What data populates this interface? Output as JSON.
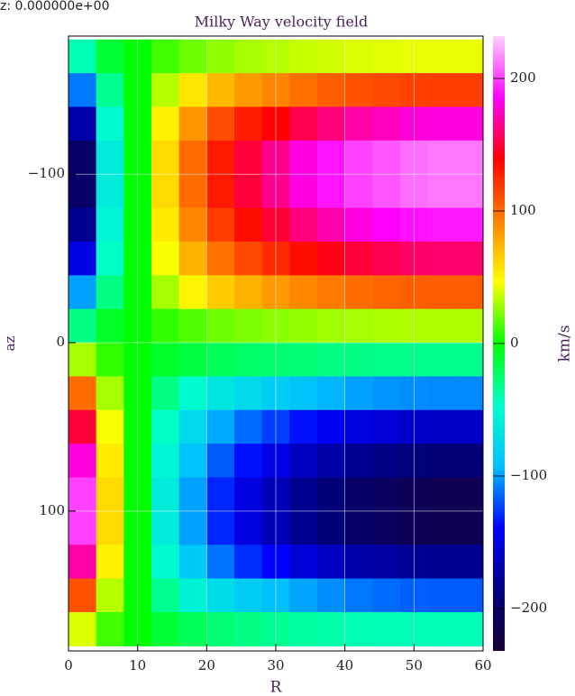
{
  "chart_data": {
    "type": "heatmap",
    "header": "z:  0.000000e+00",
    "title": "Milky Way velocity field",
    "xlabel": "R",
    "ylabel": "az",
    "colorbar_label": "km/s",
    "x": [
      2,
      6,
      10,
      14,
      18,
      22,
      26,
      30,
      34,
      38,
      42,
      46,
      50,
      54,
      58
    ],
    "y": [
      -170,
      -150,
      -130,
      -110,
      -90,
      -70,
      -50,
      -30,
      -10,
      10,
      30,
      50,
      70,
      90,
      110,
      130,
      150,
      170
    ],
    "z": [
      [
        -40,
        -12,
        0,
        12,
        20,
        26,
        30,
        33,
        36,
        38,
        40,
        41,
        42,
        42,
        42
      ],
      [
        -110,
        -33,
        0,
        33,
        55,
        72,
        83,
        91,
        99,
        105,
        110,
        113,
        116,
        117,
        117
      ],
      [
        -170,
        -51,
        0,
        51,
        85,
        111,
        128,
        140,
        153,
        162,
        170,
        174,
        179,
        180,
        180
      ],
      [
        -200,
        -60,
        0,
        60,
        100,
        130,
        150,
        165,
        180,
        190,
        200,
        205,
        210,
        212,
        212
      ],
      [
        -200,
        -60,
        0,
        60,
        100,
        130,
        150,
        165,
        180,
        190,
        200,
        205,
        210,
        212,
        212
      ],
      [
        -180,
        -54,
        0,
        54,
        90,
        117,
        135,
        149,
        162,
        171,
        180,
        185,
        189,
        191,
        191
      ],
      [
        -150,
        -45,
        0,
        45,
        75,
        98,
        113,
        124,
        135,
        143,
        150,
        154,
        158,
        159,
        159
      ],
      [
        -100,
        -30,
        0,
        30,
        50,
        65,
        75,
        83,
        90,
        95,
        100,
        103,
        105,
        106,
        106
      ],
      [
        -30,
        -9,
        0,
        9,
        15,
        20,
        23,
        25,
        27,
        29,
        30,
        31,
        32,
        32,
        32
      ],
      [
        30,
        9,
        0,
        -9,
        -15,
        -20,
        -23,
        -25,
        -27,
        -29,
        -30,
        -31,
        -32,
        -32,
        -32
      ],
      [
        100,
        30,
        0,
        -30,
        -50,
        -65,
        -75,
        -83,
        -90,
        -95,
        -100,
        -103,
        -105,
        -106,
        -106
      ],
      [
        150,
        45,
        0,
        -45,
        -75,
        -98,
        -113,
        -124,
        -135,
        -143,
        -150,
        -154,
        -158,
        -159,
        -159
      ],
      [
        180,
        54,
        0,
        -54,
        -90,
        -117,
        -135,
        -149,
        -162,
        -171,
        -180,
        -185,
        -189,
        -191,
        -191
      ],
      [
        200,
        60,
        0,
        -60,
        -100,
        -130,
        -150,
        -165,
        -180,
        -190,
        -200,
        -205,
        -210,
        -212,
        -212
      ],
      [
        200,
        60,
        0,
        -60,
        -100,
        -130,
        -150,
        -165,
        -180,
        -190,
        -200,
        -205,
        -210,
        -212,
        -212
      ],
      [
        170,
        51,
        0,
        -51,
        -85,
        -111,
        -128,
        -140,
        -153,
        -162,
        -170,
        -174,
        -179,
        -180,
        -180
      ],
      [
        110,
        33,
        0,
        -33,
        -55,
        -72,
        -83,
        -91,
        -99,
        -105,
        -110,
        -113,
        -116,
        -117,
        -117
      ],
      [
        40,
        12,
        0,
        -12,
        -20,
        -26,
        -30,
        -33,
        -36,
        -38,
        -40,
        -41,
        -42,
        -42,
        -42
      ]
    ],
    "xlim": [
      0,
      60
    ],
    "ylim": [
      -182,
      183
    ],
    "xticks": [
      0,
      10,
      20,
      30,
      40,
      50,
      60
    ],
    "yticks": [
      {
        "value": -100,
        "label": "−100"
      },
      0,
      100
    ],
    "clim": [
      -232,
      232
    ],
    "cticks": [
      {
        "value": -200,
        "label": "−200"
      },
      {
        "value": -100,
        "label": "−100"
      },
      0,
      100,
      200
    ],
    "colormap": [
      "#1a0033",
      "#000080",
      "#0000ff",
      "#00bfff",
      "#00ffcc",
      "#00ff00",
      "#ffff00",
      "#ff8000",
      "#ff0000",
      "#ff00ff",
      "#ffd0ff"
    ],
    "grid": true
  }
}
